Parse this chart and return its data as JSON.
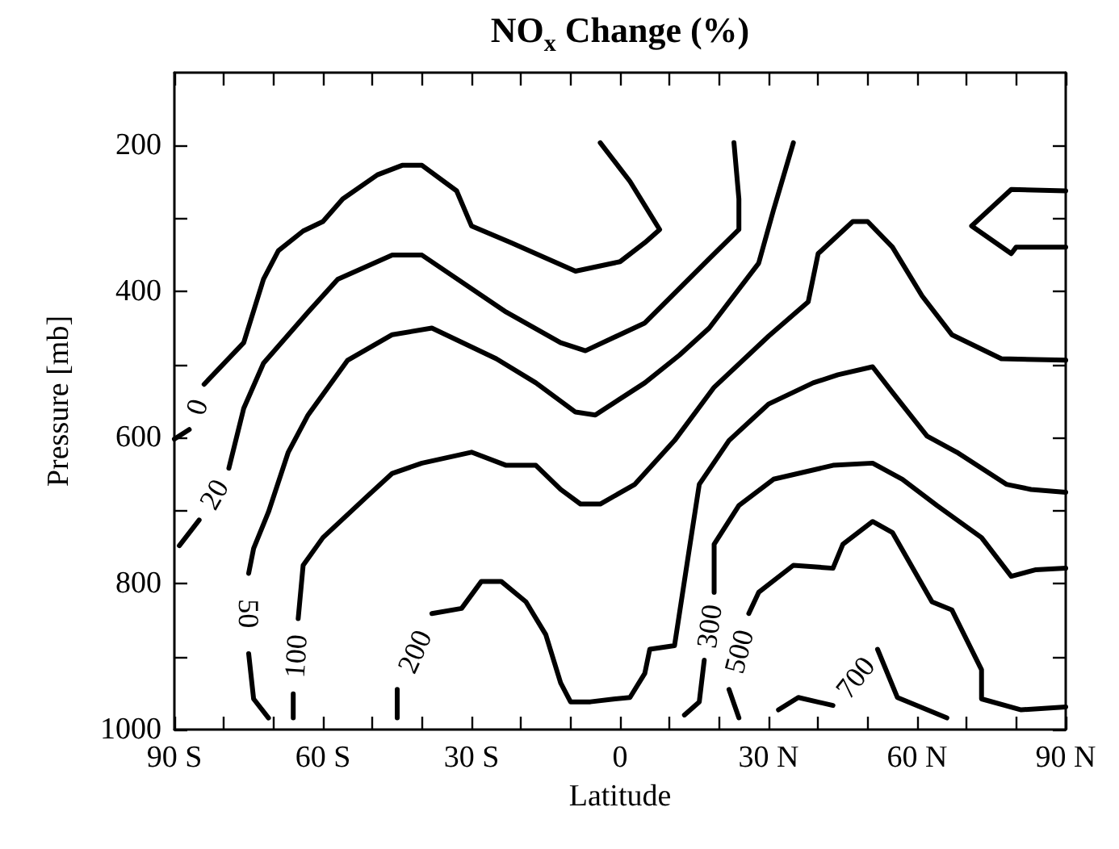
{
  "chart_data": {
    "type": "line",
    "title": "NO$_{x}$ Change (%)",
    "xlabel": "Latitude",
    "ylabel": "Pressure [mb]",
    "xlim": [
      -90,
      90
    ],
    "xticks": [
      {
        "value": -90,
        "label": "90 S"
      },
      {
        "value": -80,
        "label": null
      },
      {
        "value": -70,
        "label": null
      },
      {
        "value": -60,
        "label": "60 S"
      },
      {
        "value": -50,
        "label": null
      },
      {
        "value": -40,
        "label": null
      },
      {
        "value": -30,
        "label": "30 S"
      },
      {
        "value": -20,
        "label": null
      },
      {
        "value": -10,
        "label": null
      },
      0,
      {
        "value": 10,
        "label": null
      },
      {
        "value": 20,
        "label": null
      },
      {
        "value": 30,
        "label": "30 N"
      },
      {
        "value": 40,
        "label": null
      },
      {
        "value": 50,
        "label": null
      },
      {
        "value": 60,
        "label": "60 N"
      },
      {
        "value": 70,
        "label": null
      },
      {
        "value": 80,
        "label": null
      },
      {
        "value": 90,
        "label": "90 N"
      }
    ],
    "ylim": [
      1000,
      100
    ],
    "yticks": [
      200,
      {
        "value": 300,
        "label": null
      },
      400,
      {
        "value": 500,
        "label": null
      },
      600,
      {
        "value": 700,
        "label": null
      },
      800,
      {
        "value": 900,
        "label": null
      },
      1000
    ],
    "grid": false,
    "legend": false,
    "marker": "none",
    "line_style": "solid",
    "series": [
      {
        "name": "0",
        "color": "#000000",
        "x": [
          -90,
          -87,
          null,
          -84,
          -76,
          -72,
          -69,
          -64,
          -60,
          -56,
          -49,
          -44,
          -40,
          -33,
          -30,
          -22,
          -9,
          0,
          5,
          8,
          2,
          -4
        ],
        "values": [
          602,
          589,
          null,
          527,
          470,
          383,
          344,
          317,
          304,
          273,
          240,
          227,
          227,
          262,
          310,
          333,
          372,
          359,
          333,
          315,
          249,
          196
        ]
      },
      {
        "name": "20",
        "color": "#000000",
        "x": [
          -89,
          -85,
          null,
          -79,
          -76,
          -72,
          -63,
          -57,
          -46,
          -40,
          -23,
          -12,
          -7,
          5,
          18,
          24,
          24,
          23
        ],
        "values": [
          748,
          713,
          null,
          642,
          560,
          498,
          428,
          383,
          350,
          350,
          428,
          470,
          481,
          443,
          355,
          315,
          273,
          196
        ]
      },
      {
        "name": "50",
        "color": "#000000",
        "x": [
          -71,
          -74,
          -75,
          null,
          -75,
          -74,
          -71,
          -67,
          -63,
          -55,
          -46,
          -38,
          -25,
          -17,
          -9,
          -5,
          5,
          12,
          18,
          28,
          31,
          35
        ],
        "values": [
          984,
          958,
          896,
          null,
          786,
          752,
          702,
          620,
          569,
          494,
          459,
          450,
          492,
          525,
          565,
          569,
          525,
          487,
          450,
          361,
          288,
          196
        ]
      },
      {
        "name": "100",
        "color": "#000000",
        "x": [
          -66,
          -66,
          null,
          -65,
          -64,
          -60,
          -51,
          -46,
          -40,
          -30,
          -23,
          -17,
          -12,
          -8,
          -4,
          3,
          11,
          19,
          30,
          38,
          40,
          47,
          50,
          55,
          61,
          67,
          77,
          90
        ],
        "values": [
          984,
          951,
          null,
          848,
          775,
          737,
          680,
          649,
          635,
          620,
          638,
          638,
          671,
          691,
          691,
          664,
          604,
          531,
          461,
          414,
          348,
          304,
          304,
          339,
          406,
          459,
          492,
          494
        ]
      },
      {
        "name": "200",
        "color": "#000000",
        "x": [
          -45,
          -45,
          null,
          -38,
          -32,
          -28,
          -24,
          -19,
          -15,
          -12,
          -10,
          -6,
          -1,
          2,
          5,
          6,
          11,
          14,
          16,
          22,
          30,
          39,
          44,
          51,
          55,
          62,
          68,
          78,
          83,
          90
        ],
        "values": [
          984,
          945,
          null,
          841,
          834,
          797,
          797,
          825,
          870,
          936,
          962,
          962,
          958,
          956,
          923,
          890,
          885,
          752,
          664,
          604,
          554,
          525,
          514,
          503,
          538,
          598,
          620,
          664,
          671,
          675
        ]
      },
      {
        "name": "300",
        "color": "#000000",
        "x": [
          13,
          16,
          17,
          null,
          19,
          19,
          24,
          31,
          43,
          51,
          57,
          64,
          73,
          79,
          84,
          90
        ],
        "values": [
          980,
          962,
          905,
          null,
          812,
          746,
          693,
          657,
          638,
          635,
          657,
          693,
          737,
          790,
          781,
          779
        ]
      },
      {
        "name": "500",
        "color": "#000000",
        "x": [
          24,
          22,
          null,
          26,
          28,
          35,
          43,
          45,
          51,
          55,
          63,
          67,
          73,
          73,
          81,
          90
        ],
        "values": [
          984,
          945,
          null,
          841,
          812,
          775,
          779,
          746,
          715,
          730,
          825,
          836,
          918,
          958,
          973,
          969
        ]
      },
      {
        "name": "700",
        "color": "#000000",
        "x": [
          32,
          36,
          43,
          null,
          52,
          56,
          66
        ],
        "values": [
          973,
          956,
          967,
          null,
          890,
          956,
          984
        ]
      },
      {
        "color": "#000000",
        "x": [
          90,
          79,
          71,
          79,
          80,
          90
        ],
        "values": [
          262,
          260,
          310,
          348,
          339,
          339
        ]
      }
    ]
  }
}
